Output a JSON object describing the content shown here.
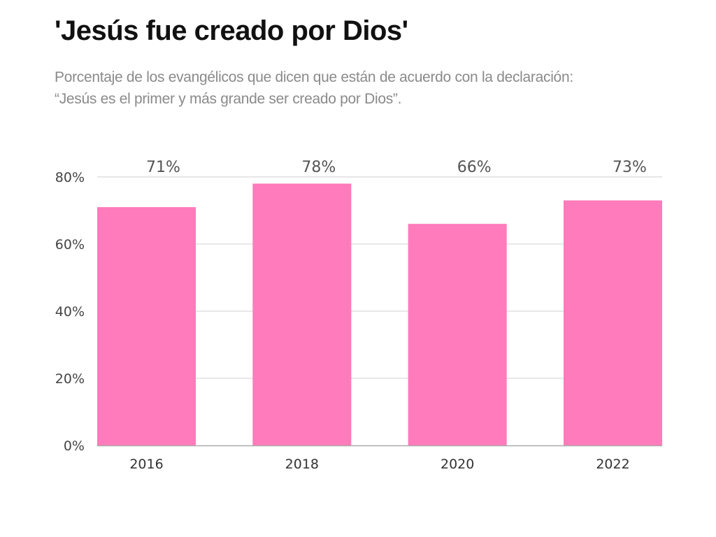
{
  "header": {
    "title": "'Jesús fue creado por Dios'",
    "subtitle_line1": "Porcentaje de los evangélicos que dicen que están de acuerdo con la declaración:",
    "subtitle_line2": "“Jesús es el primer y más grande ser creado por Dios”."
  },
  "colors": {
    "bar": "#ff7bbb",
    "grid": "#d9d9d9",
    "axis": "#aaaaaa"
  },
  "chart_data": {
    "type": "bar",
    "title": "'Jesús fue creado por Dios'",
    "subtitle": "Porcentaje de los evangélicos que dicen que están de acuerdo con la declaración: “Jesús es el primer y más grande ser creado por Dios”.",
    "categories": [
      "2016",
      "2018",
      "2020",
      "2022"
    ],
    "values": [
      71,
      78,
      66,
      73
    ],
    "data_labels": [
      "71%",
      "78%",
      "66%",
      "73%"
    ],
    "xlabel": "",
    "ylabel": "",
    "ylim": [
      0,
      80
    ],
    "yticks": [
      0,
      20,
      40,
      60,
      80
    ],
    "ytick_labels": [
      "0%",
      "20%",
      "40%",
      "60%",
      "80%"
    ],
    "grid": true,
    "legend": "none"
  }
}
